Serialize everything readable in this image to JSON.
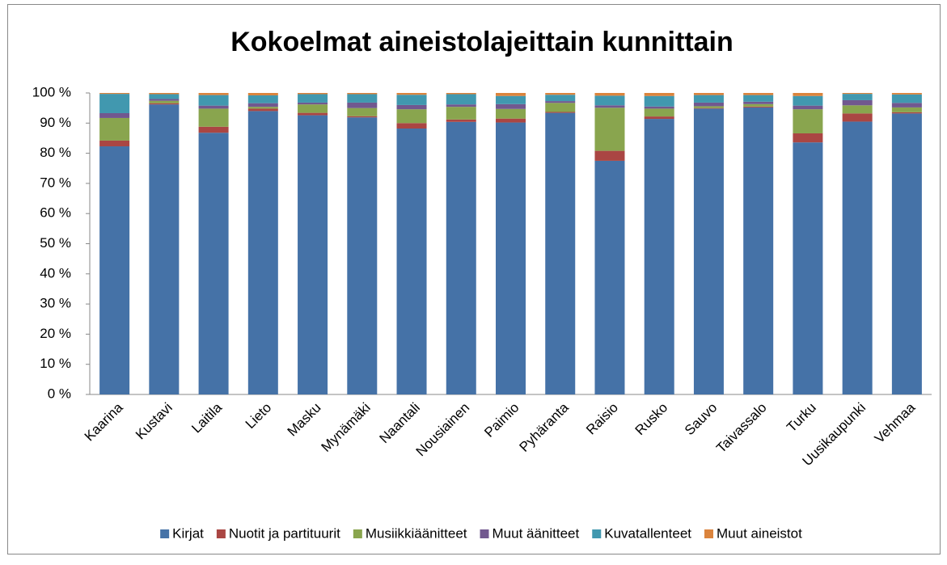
{
  "chart_data": {
    "type": "stacked_bar",
    "title": "Kokoelmat aineistolajeittain kunnittain",
    "categories": [
      "Kaarina",
      "Kustavi",
      "Laitila",
      "Lieto",
      "Masku",
      "Mynämäki",
      "Naantali",
      "Nousiainen",
      "Paimio",
      "Pyhäranta",
      "Raisio",
      "Rusko",
      "Sauvo",
      "Taivassalo",
      "Turku",
      "Uusikaupunki",
      "Vehmaa"
    ],
    "series": [
      {
        "name": "Kirjat",
        "color": "#4572a7",
        "values": [
          82.3,
          96.2,
          86.8,
          94.0,
          92.6,
          91.9,
          88.2,
          90.4,
          90.2,
          93.4,
          77.5,
          91.4,
          94.8,
          95.2,
          83.6,
          90.5,
          93.2
        ]
      },
      {
        "name": "Nuotit ja partituurit",
        "color": "#aa4643",
        "values": [
          1.9,
          0.4,
          2.0,
          0.8,
          0.8,
          0.4,
          1.8,
          0.8,
          1.3,
          0.3,
          3.3,
          0.8,
          0.2,
          0.3,
          3.0,
          2.7,
          0.4
        ]
      },
      {
        "name": "Musiikkiäänitteet",
        "color": "#89a54e",
        "values": [
          7.5,
          0.8,
          6.0,
          0.6,
          2.8,
          2.7,
          4.6,
          4.2,
          3.2,
          3.0,
          14.3,
          2.6,
          0.6,
          0.8,
          8.0,
          2.7,
          1.6
        ]
      },
      {
        "name": "Muut äänitteet",
        "color": "#71588f",
        "values": [
          1.6,
          0.6,
          1.0,
          1.2,
          0.6,
          1.8,
          1.4,
          0.8,
          1.6,
          0.6,
          0.8,
          0.7,
          1.2,
          0.8,
          1.2,
          1.7,
          1.5
        ]
      },
      {
        "name": "Kuvatallenteet",
        "color": "#4198af",
        "values": [
          6.4,
          1.6,
          3.5,
          2.6,
          2.8,
          2.8,
          3.4,
          3.4,
          2.7,
          2.1,
          3.2,
          3.5,
          2.5,
          2.2,
          3.2,
          2.1,
          2.8
        ]
      },
      {
        "name": "Muut aineistot",
        "color": "#db843d",
        "values": [
          0.3,
          0.4,
          0.7,
          0.8,
          0.4,
          0.4,
          0.6,
          0.4,
          1.0,
          0.6,
          0.9,
          1.0,
          0.7,
          0.7,
          1.0,
          0.3,
          0.5
        ]
      }
    ],
    "ylim": [
      0,
      100
    ],
    "yticks": [
      {
        "value": 0,
        "label": "0 %"
      },
      {
        "value": 10,
        "label": "10 %"
      },
      {
        "value": 20,
        "label": "20 %"
      },
      {
        "value": 30,
        "label": "30 %"
      },
      {
        "value": 40,
        "label": "40 %"
      },
      {
        "value": 50,
        "label": "50 %"
      },
      {
        "value": 60,
        "label": "60 %"
      },
      {
        "value": 70,
        "label": "70 %"
      },
      {
        "value": 80,
        "label": "80 %"
      },
      {
        "value": 90,
        "label": "90 %"
      },
      {
        "value": 100,
        "label": "100 %"
      }
    ],
    "legend": "bottom"
  }
}
